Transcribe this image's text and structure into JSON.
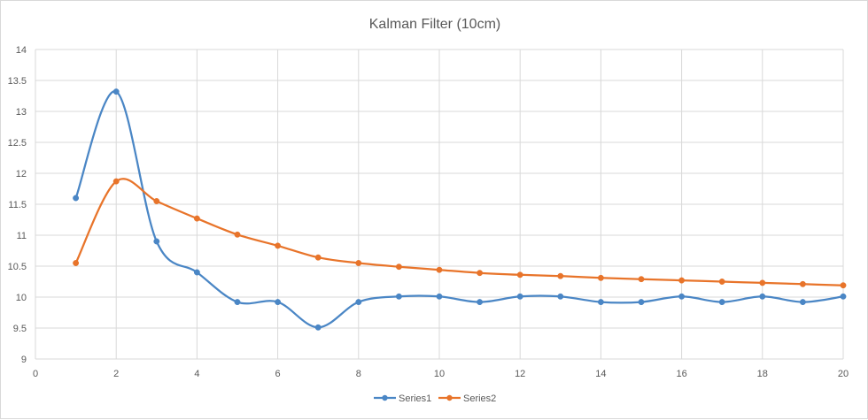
{
  "chart_data": {
    "type": "line",
    "title": "Kalman Filter (10cm)",
    "xlabel": "",
    "ylabel": "",
    "xlim": [
      0,
      20
    ],
    "ylim": [
      9,
      14
    ],
    "x_ticks": [
      0,
      2,
      4,
      6,
      8,
      10,
      12,
      14,
      16,
      18,
      20
    ],
    "y_ticks": [
      9,
      9.5,
      10,
      10.5,
      11,
      11.5,
      12,
      12.5,
      13,
      13.5,
      14
    ],
    "grid": true,
    "smooth": true,
    "legend_position": "bottom",
    "x": [
      1,
      2,
      3,
      4,
      5,
      6,
      7,
      8,
      9,
      10,
      11,
      12,
      13,
      14,
      15,
      16,
      17,
      18,
      19,
      20
    ],
    "series": [
      {
        "name": "Series1",
        "color": "#4a86c5",
        "values": [
          11.6,
          13.32,
          10.9,
          10.4,
          9.92,
          9.92,
          9.51,
          9.92,
          10.01,
          10.01,
          9.92,
          10.01,
          10.01,
          9.92,
          9.92,
          10.01,
          9.92,
          10.01,
          9.92,
          10.01
        ]
      },
      {
        "name": "Series2",
        "color": "#e8742a",
        "values": [
          10.55,
          11.87,
          11.55,
          11.27,
          11.01,
          10.83,
          10.64,
          10.55,
          10.49,
          10.44,
          10.39,
          10.36,
          10.34,
          10.31,
          10.29,
          10.27,
          10.25,
          10.23,
          10.21,
          10.19
        ]
      }
    ]
  }
}
